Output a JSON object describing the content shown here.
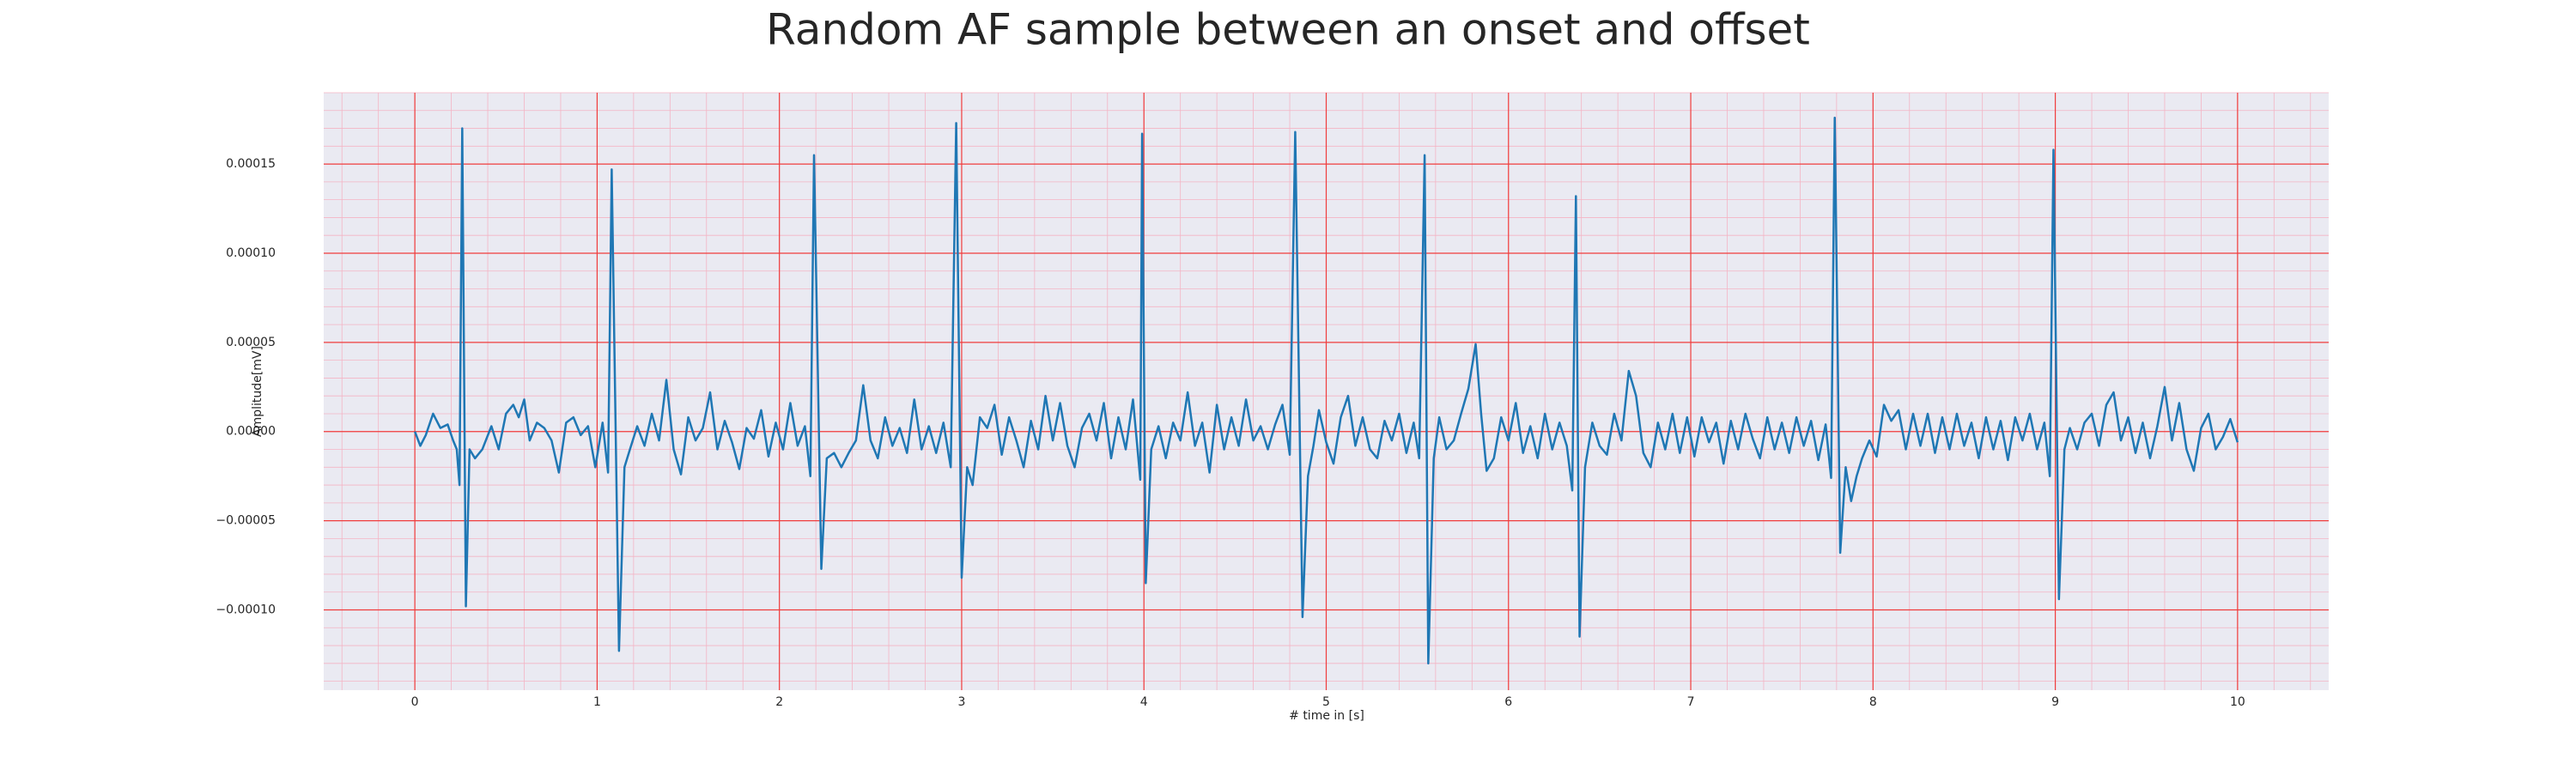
{
  "chart_data": {
    "type": "line",
    "title": "Random AF sample between an onset and offset",
    "xlabel": "# time in [s]",
    "ylabel": "Amplitude[mV]",
    "xlim": [
      -0.5,
      10.5
    ],
    "ylim": [
      -0.000145,
      0.00019
    ],
    "xticks": [
      0,
      1,
      2,
      3,
      4,
      5,
      6,
      7,
      8,
      9,
      10
    ],
    "yticks": [
      {
        "value": -0.0001,
        "label": "−0.00010"
      },
      {
        "value": -5e-05,
        "label": "−0.00005"
      },
      {
        "value": 0,
        "label": "0.00000"
      },
      {
        "value": 5e-05,
        "label": "0.00005"
      },
      {
        "value": 0.0001,
        "label": "0.00010"
      },
      {
        "value": 0.00015,
        "label": "0.00015"
      }
    ],
    "grid": true,
    "x": [
      0,
      0.03,
      0.06,
      0.1,
      0.14,
      0.18,
      0.21,
      0.23,
      0.245,
      0.26,
      0.28,
      0.3,
      0.33,
      0.37,
      0.42,
      0.46,
      0.5,
      0.54,
      0.57,
      0.6,
      0.63,
      0.67,
      0.71,
      0.75,
      0.79,
      0.83,
      0.87,
      0.91,
      0.95,
      0.99,
      1.03,
      1.06,
      1.08,
      1.12,
      1.15,
      1.18,
      1.22,
      1.26,
      1.3,
      1.34,
      1.38,
      1.42,
      1.46,
      1.5,
      1.54,
      1.58,
      1.62,
      1.66,
      1.7,
      1.74,
      1.78,
      1.82,
      1.86,
      1.9,
      1.94,
      1.98,
      2.02,
      2.06,
      2.1,
      2.14,
      2.17,
      2.19,
      2.23,
      2.26,
      2.3,
      2.34,
      2.38,
      2.42,
      2.46,
      2.5,
      2.54,
      2.58,
      2.62,
      2.66,
      2.7,
      2.74,
      2.78,
      2.82,
      2.86,
      2.9,
      2.94,
      2.97,
      3.0,
      3.03,
      3.06,
      3.1,
      3.14,
      3.18,
      3.22,
      3.26,
      3.3,
      3.34,
      3.38,
      3.42,
      3.46,
      3.5,
      3.54,
      3.58,
      3.62,
      3.66,
      3.7,
      3.74,
      3.78,
      3.82,
      3.86,
      3.9,
      3.94,
      3.98,
      3.99,
      4.01,
      4.04,
      4.08,
      4.12,
      4.16,
      4.2,
      4.24,
      4.28,
      4.32,
      4.36,
      4.4,
      4.44,
      4.48,
      4.52,
      4.56,
      4.6,
      4.64,
      4.68,
      4.72,
      4.76,
      4.8,
      4.83,
      4.87,
      4.9,
      4.93,
      4.96,
      5.0,
      5.04,
      5.08,
      5.12,
      5.16,
      5.2,
      5.24,
      5.28,
      5.32,
      5.36,
      5.4,
      5.44,
      5.48,
      5.51,
      5.54,
      5.56,
      5.59,
      5.62,
      5.66,
      5.7,
      5.74,
      5.78,
      5.82,
      5.85,
      5.88,
      5.92,
      5.96,
      6.0,
      6.04,
      6.08,
      6.12,
      6.16,
      6.2,
      6.24,
      6.28,
      6.32,
      6.35,
      6.37,
      6.39,
      6.42,
      6.46,
      6.5,
      6.54,
      6.58,
      6.62,
      6.66,
      6.7,
      6.74,
      6.78,
      6.82,
      6.86,
      6.9,
      6.94,
      6.98,
      7.02,
      7.06,
      7.1,
      7.14,
      7.18,
      7.22,
      7.26,
      7.3,
      7.34,
      7.38,
      7.42,
      7.46,
      7.5,
      7.54,
      7.58,
      7.62,
      7.66,
      7.7,
      7.74,
      7.77,
      7.79,
      7.82,
      7.85,
      7.88,
      7.91,
      7.94,
      7.98,
      8.02,
      8.06,
      8.1,
      8.14,
      8.18,
      8.22,
      8.26,
      8.3,
      8.34,
      8.38,
      8.42,
      8.46,
      8.5,
      8.54,
      8.58,
      8.62,
      8.66,
      8.7,
      8.74,
      8.78,
      8.82,
      8.86,
      8.9,
      8.94,
      8.97,
      8.99,
      9.02,
      9.05,
      9.08,
      9.12,
      9.16,
      9.2,
      9.24,
      9.28,
      9.32,
      9.36,
      9.4,
      9.44,
      9.48,
      9.52,
      9.56,
      9.6,
      9.64,
      9.68,
      9.72,
      9.76,
      9.8,
      9.84,
      9.88,
      9.92,
      9.96,
      10.0
    ],
    "series": [
      {
        "color": "#1f77b4",
        "values": [
          0,
          -8e-06,
          -2e-06,
          1e-05,
          2e-06,
          4e-06,
          -5e-06,
          -1e-05,
          -3e-05,
          0.00017,
          -9.8e-05,
          -1e-05,
          -1.5e-05,
          -1e-05,
          3e-06,
          -1e-05,
          1e-05,
          1.5e-05,
          8e-06,
          1.8e-05,
          -5e-06,
          5e-06,
          2e-06,
          -5e-06,
          -2.3e-05,
          5e-06,
          8e-06,
          -2e-06,
          3e-06,
          -2e-05,
          5e-06,
          -2.3e-05,
          0.000147,
          -0.000123,
          -2e-05,
          -1e-05,
          3e-06,
          -8e-06,
          1e-05,
          -5e-06,
          2.9e-05,
          -1e-05,
          -2.4e-05,
          8e-06,
          -5e-06,
          2e-06,
          2.2e-05,
          -1e-05,
          6e-06,
          -6e-06,
          -2.1e-05,
          2e-06,
          -4e-06,
          1.2e-05,
          -1.4e-05,
          5e-06,
          -1e-05,
          1.6e-05,
          -8e-06,
          3e-06,
          -2.5e-05,
          0.000155,
          -7.7e-05,
          -1.5e-05,
          -1.2e-05,
          -2e-05,
          -1.2e-05,
          -5e-06,
          2.6e-05,
          -5e-06,
          -1.5e-05,
          8e-06,
          -8e-06,
          2e-06,
          -1.2e-05,
          1.8e-05,
          -1e-05,
          3e-06,
          -1.2e-05,
          5e-06,
          -2e-05,
          0.000173,
          -8.2e-05,
          -2e-05,
          -3e-05,
          8e-06,
          2e-06,
          1.5e-05,
          -1.3e-05,
          8e-06,
          -5e-06,
          -2e-05,
          6e-06,
          -1e-05,
          2e-05,
          -5e-06,
          1.6e-05,
          -8e-06,
          -2e-05,
          2e-06,
          1e-05,
          -5e-06,
          1.6e-05,
          -1.5e-05,
          8e-06,
          -1e-05,
          1.8e-05,
          -2.7e-05,
          0.000167,
          -8.5e-05,
          -1e-05,
          3e-06,
          -1.5e-05,
          5e-06,
          -5e-06,
          2.2e-05,
          -8e-06,
          5e-06,
          -2.3e-05,
          1.5e-05,
          -1e-05,
          8e-06,
          -8e-06,
          1.8e-05,
          -5e-06,
          3e-06,
          -1e-05,
          4e-06,
          1.5e-05,
          -1.3e-05,
          0.000168,
          -0.000104,
          -2.5e-05,
          -8e-06,
          1.2e-05,
          -6e-06,
          -1.8e-05,
          8e-06,
          2e-05,
          -8e-06,
          8e-06,
          -1e-05,
          -1.5e-05,
          6e-06,
          -5e-06,
          1e-05,
          -1.2e-05,
          5e-06,
          -1.5e-05,
          0.000155,
          -0.00013,
          -1.5e-05,
          8e-06,
          -1e-05,
          -5e-06,
          1e-05,
          2.4e-05,
          4.9e-05,
          1e-05,
          -2.2e-05,
          -1.5e-05,
          8e-06,
          -5e-06,
          1.6e-05,
          -1.2e-05,
          3e-06,
          -1.5e-05,
          1e-05,
          -1e-05,
          5e-06,
          -8e-06,
          -3.3e-05,
          0.000132,
          -0.000115,
          -2e-05,
          5e-06,
          -8e-06,
          -1.3e-05,
          1e-05,
          -5e-06,
          3.4e-05,
          2e-05,
          -1.2e-05,
          -2e-05,
          5e-06,
          -1e-05,
          1e-05,
          -1.2e-05,
          8e-06,
          -1.4e-05,
          8e-06,
          -6e-06,
          5e-06,
          -1.8e-05,
          6e-06,
          -1e-05,
          1e-05,
          -4e-06,
          -1.5e-05,
          8e-06,
          -1e-05,
          5e-06,
          -1.2e-05,
          8e-06,
          -8e-06,
          6e-06,
          -1.6e-05,
          4e-06,
          -2.6e-05,
          0.000176,
          -6.8e-05,
          -2e-05,
          -3.9e-05,
          -2.5e-05,
          -1.5e-05,
          -5e-06,
          -1.4e-05,
          1.5e-05,
          6e-06,
          1.2e-05,
          -1e-05,
          1e-05,
          -8e-06,
          1e-05,
          -1.2e-05,
          8e-06,
          -1e-05,
          1e-05,
          -8e-06,
          5e-06,
          -1.5e-05,
          8e-06,
          -1e-05,
          6e-06,
          -1.6e-05,
          8e-06,
          -5e-06,
          1e-05,
          -1e-05,
          5e-06,
          -2.5e-05,
          0.000158,
          -9.4e-05,
          -1e-05,
          2e-06,
          -1e-05,
          5e-06,
          1e-05,
          -8e-06,
          1.5e-05,
          2.2e-05,
          -5e-06,
          8e-06,
          -1.2e-05,
          5e-06,
          -1.5e-05,
          3e-06,
          2.5e-05,
          -5e-06,
          1.6e-05,
          -1e-05,
          -2.2e-05,
          2e-06,
          1e-05,
          -1e-05,
          -3e-06,
          7e-06,
          -6e-06
        ]
      }
    ]
  }
}
